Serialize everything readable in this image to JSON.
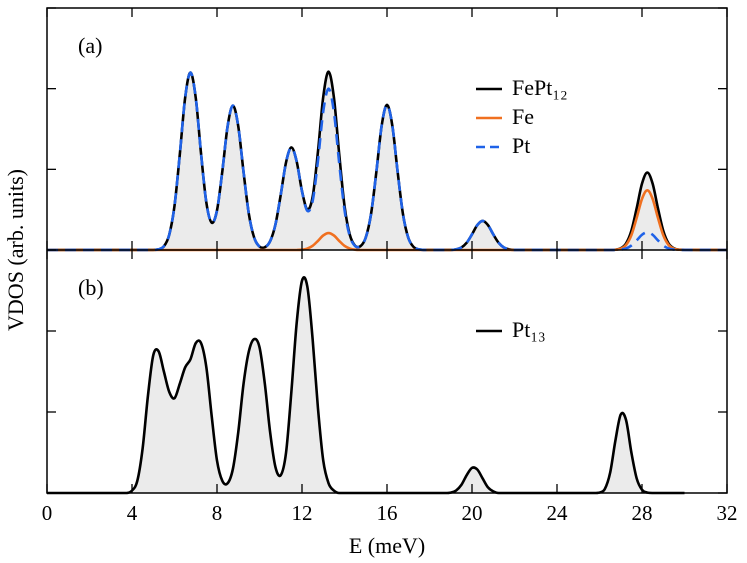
{
  "chart_data": [
    {
      "type": "line",
      "label": "(a)",
      "ylabel": "VDOS (arb. units)",
      "legend": "upper right",
      "fill": "#ebebeb",
      "xlim": [
        0,
        32
      ],
      "xticks": [
        0,
        4,
        8,
        12,
        16,
        20,
        24,
        28,
        32
      ],
      "ylim": [
        0,
        3
      ],
      "yticks": [
        0,
        1,
        2,
        3
      ],
      "x": [
        0,
        5,
        5.25,
        5.5,
        5.75,
        6,
        6.25,
        6.5,
        6.75,
        7,
        7.25,
        7.5,
        7.75,
        8,
        8.25,
        8.5,
        8.75,
        9,
        9.25,
        9.5,
        9.75,
        10,
        10.25,
        10.5,
        10.75,
        11,
        11.25,
        11.5,
        11.75,
        12,
        12.25,
        12.5,
        12.75,
        13,
        13.25,
        13.5,
        13.75,
        14,
        14.25,
        14.5,
        14.75,
        15,
        15.25,
        15.5,
        15.75,
        16,
        16.25,
        16.5,
        16.75,
        17,
        17.25,
        17.5,
        17.75,
        19,
        19.25,
        19.5,
        19.75,
        20,
        20.25,
        20.5,
        20.75,
        21,
        21.25,
        21.5,
        21.75,
        22,
        26.5,
        26.75,
        27,
        27.25,
        27.5,
        27.75,
        28,
        28.25,
        28.5,
        28.75,
        29,
        29.25,
        29.5,
        29.75,
        32
      ],
      "series": [
        {
          "name": "FePt₁₂",
          "color": "#000000",
          "linestyle": "solid",
          "values": [
            0,
            0.001,
            0.009,
            0.046,
            0.187,
            0.548,
            1.186,
            1.885,
            2.2,
            1.886,
            1.193,
            0.586,
            0.339,
            0.492,
            0.974,
            1.535,
            1.79,
            1.534,
            0.965,
            0.446,
            0.153,
            0.043,
            0.034,
            0.109,
            0.316,
            0.685,
            1.088,
            1.271,
            1.097,
            0.731,
            0.504,
            0.658,
            1.218,
            1.899,
            2.21,
            1.894,
            1.191,
            0.55,
            0.189,
            0.053,
            0.047,
            0.155,
            0.448,
            0.97,
            1.543,
            1.8,
            1.543,
            0.97,
            0.448,
            0.153,
            0.038,
            0.007,
            0.001,
            0.001,
            0.008,
            0.031,
            0.09,
            0.194,
            0.309,
            0.36,
            0.309,
            0.194,
            0.09,
            0.031,
            0.008,
            0.001,
            0,
            0.004,
            0.021,
            0.082,
            0.239,
            0.518,
            0.823,
            0.96,
            0.823,
            0.518,
            0.239,
            0.082,
            0.021,
            0.004,
            0
          ]
        },
        {
          "name": "Fe",
          "color": "#f07020",
          "linestyle": "solid",
          "values": [
            0,
            0,
            0,
            0,
            0,
            0,
            0,
            0,
            0,
            0,
            0,
            0,
            0,
            0,
            0,
            0,
            0,
            0,
            0,
            0,
            0,
            0,
            0,
            0,
            0,
            0,
            0,
            0,
            0,
            0.004,
            0.018,
            0.052,
            0.113,
            0.18,
            0.21,
            0.18,
            0.113,
            0.052,
            0.018,
            0.004,
            0,
            0,
            0,
            0,
            0,
            0,
            0,
            0,
            0,
            0,
            0,
            0,
            0,
            0,
            0,
            0,
            0,
            0,
            0,
            0,
            0,
            0,
            0,
            0,
            0,
            0,
            0,
            0.003,
            0.016,
            0.063,
            0.184,
            0.399,
            0.634,
            0.74,
            0.634,
            0.399,
            0.184,
            0.063,
            0.016,
            0.003,
            0
          ]
        },
        {
          "name": "Pt",
          "color": "#1f62e8",
          "linestyle": "dashed",
          "values": [
            0,
            0.001,
            0.009,
            0.046,
            0.187,
            0.548,
            1.186,
            1.885,
            2.2,
            1.886,
            1.193,
            0.586,
            0.339,
            0.492,
            0.974,
            1.535,
            1.79,
            1.534,
            0.965,
            0.446,
            0.153,
            0.043,
            0.034,
            0.109,
            0.316,
            0.685,
            1.088,
            1.271,
            1.097,
            0.727,
            0.486,
            0.606,
            1.105,
            1.719,
            2.0,
            1.714,
            1.078,
            0.498,
            0.171,
            0.049,
            0.047,
            0.155,
            0.448,
            0.97,
            1.543,
            1.8,
            1.543,
            0.97,
            0.448,
            0.153,
            0.038,
            0.007,
            0.001,
            0.001,
            0.008,
            0.031,
            0.09,
            0.194,
            0.309,
            0.36,
            0.309,
            0.194,
            0.09,
            0.031,
            0.008,
            0.001,
            0,
            0.001,
            0.005,
            0.019,
            0.055,
            0.119,
            0.189,
            0.22,
            0.189,
            0.119,
            0.055,
            0.019,
            0.005,
            0.001,
            0
          ]
        }
      ]
    },
    {
      "type": "line",
      "label": "(b)",
      "xlabel": "E (meV)",
      "legend": "upper right",
      "fill": "#ebebeb",
      "xlim": [
        0,
        32
      ],
      "xticks": [
        0,
        4,
        8,
        12,
        16,
        20,
        24,
        28,
        32
      ],
      "ylim": [
        0,
        3
      ],
      "yticks": [
        0,
        1,
        2,
        3
      ],
      "x": [
        0,
        3.75,
        4,
        4.25,
        4.5,
        4.75,
        5,
        5.25,
        5.5,
        5.75,
        6,
        6.25,
        6.5,
        6.75,
        7,
        7.25,
        7.5,
        7.75,
        8,
        8.25,
        8.5,
        8.75,
        9,
        9.25,
        9.5,
        9.75,
        10,
        10.25,
        10.5,
        10.75,
        11,
        11.25,
        11.5,
        11.75,
        12,
        12.25,
        12.5,
        12.75,
        13,
        13.25,
        13.5,
        13.75,
        18.75,
        19,
        19.25,
        19.5,
        19.75,
        20,
        20.25,
        20.5,
        20.75,
        21,
        21.25,
        25.75,
        26,
        26.25,
        26.5,
        26.75,
        27,
        27.25,
        27.5,
        27.75,
        28,
        28.25,
        28.5,
        30
      ],
      "series": [
        {
          "name": "Pt₁₃",
          "color": "#000000",
          "linestyle": "solid",
          "values": [
            0,
            0,
            0.03,
            0.15,
            0.55,
            1.2,
            1.7,
            1.75,
            1.5,
            1.25,
            1.17,
            1.35,
            1.55,
            1.65,
            1.85,
            1.85,
            1.55,
            0.95,
            0.4,
            0.15,
            0.12,
            0.3,
            0.75,
            1.35,
            1.75,
            1.9,
            1.8,
            1.35,
            0.75,
            0.32,
            0.22,
            0.5,
            1.25,
            2.1,
            2.62,
            2.55,
            1.9,
            1.05,
            0.4,
            0.12,
            0.03,
            0,
            0,
            0.005,
            0.03,
            0.1,
            0.22,
            0.31,
            0.29,
            0.18,
            0.07,
            0.02,
            0,
            0,
            0.005,
            0.05,
            0.25,
            0.65,
            0.97,
            0.9,
            0.5,
            0.18,
            0.04,
            0.005,
            0,
            0
          ]
        }
      ]
    }
  ]
}
